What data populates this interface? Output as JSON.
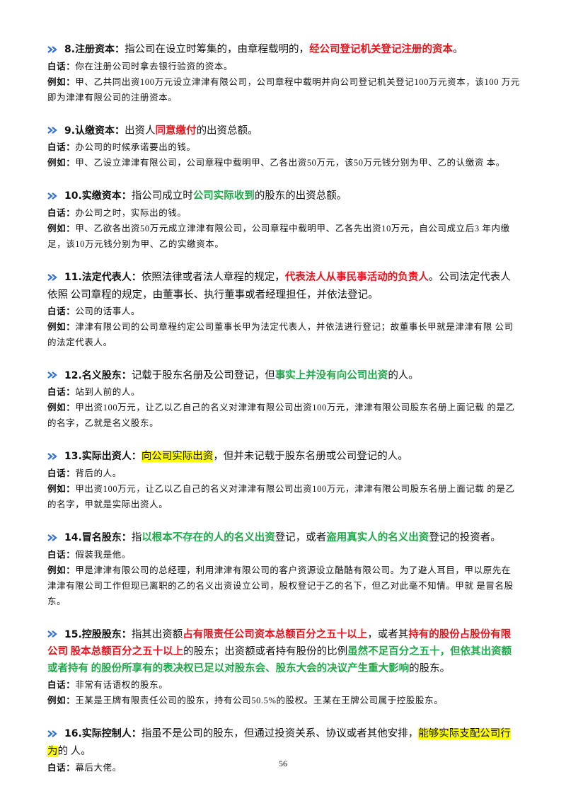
{
  "entries": [
    {
      "title": "8.注册资本：",
      "def": [
        {
          "text": "指公司在设立时筹集的，由章程载明的，"
        },
        {
          "text": "经公司登记机关登记注册的资本",
          "style": "red"
        },
        {
          "text": "。"
        }
      ],
      "lines": [
        {
          "label": "白话：",
          "text": "你在注册公司时拿去银行验资的资本。"
        },
        {
          "label": "例如：",
          "text": "甲、乙共同出资100万元设立津津有限公司，公司章程中载明并向公司登记机关登记100万元资本，该100 万元即为津津有限公司的注册资本。"
        }
      ]
    },
    {
      "title": "9.认缴资本：",
      "def": [
        {
          "text": "出资人"
        },
        {
          "text": "同意缴付",
          "style": "red"
        },
        {
          "text": "的出资总额。"
        }
      ],
      "lines": [
        {
          "label": "白话：",
          "text": "办公司的时候承诺要出的钱。"
        },
        {
          "label": "例如：",
          "text": "甲、乙设立津津有限公司，公司章程中载明甲、乙各出资50万元，该50万元钱分别为甲、乙的认缴资 本。"
        }
      ]
    },
    {
      "title": "10.实缴资本：",
      "def": [
        {
          "text": "指公司成立时"
        },
        {
          "text": "公司实际收到",
          "style": "green"
        },
        {
          "text": "的股东的出资总额。"
        }
      ],
      "lines": [
        {
          "label": "白话：",
          "text": "办公司之时，实际出的钱。"
        },
        {
          "label": "例如：",
          "text": "甲、乙欲各出资50万元成立津津有限公司，公司章程中载明甲、乙各先出资10万元，自公司成立后3 年内缴足，该10万元钱分别为甲、乙的实缴资本。"
        }
      ]
    },
    {
      "title": "11.法定代表人：",
      "def": [
        {
          "text": "依照法律或者法人章程的规定，"
        },
        {
          "text": "代表法人从事民事活动的负责人",
          "style": "red"
        },
        {
          "text": "。公司法定代表人依照 公司章程的规定，由董事长、执行董事或者经理担任，并依法登记。"
        }
      ],
      "lines": [
        {
          "label": "白话：",
          "text": "公司的话事人。"
        },
        {
          "label": "例如：",
          "text": "津津有限公司的公司章程约定公司董事长甲为法定代表人，并依法进行登记；故董事长甲就是津津有限 公司的法定代表人。"
        }
      ]
    },
    {
      "title": "12.名义股东：",
      "def": [
        {
          "text": "记载于股东名册及公司登记，但"
        },
        {
          "text": "事实上并没有向公司出资",
          "style": "green"
        },
        {
          "text": "的人。"
        }
      ],
      "lines": [
        {
          "label": "白话：",
          "text": "站到人前的人。"
        },
        {
          "label": "例如：",
          "text": "甲出资100万元，让乙以乙自己的名义对津津有限公司出资100万元，津津有限公司股东名册上面记载 的是乙的名字，乙就是名义股东。"
        }
      ]
    },
    {
      "title": "13.实际出资人：",
      "def": [
        {
          "text": "向公司实际出资",
          "style": "highlight"
        },
        {
          "text": "，但并未记载于股东名册或公司登记的人。"
        }
      ],
      "lines": [
        {
          "label": "白话：",
          "text": "背后的人。"
        },
        {
          "label": "例如：",
          "text": "甲出资100万元，让乙以乙自己的名义对津津有限公司出资100万元，津津有限公司股东名册上面记载 的是乙的名字，甲就是实际出资人。"
        }
      ]
    },
    {
      "title": "14.冒名股东：",
      "def": [
        {
          "text": "指"
        },
        {
          "text": "以根本不存在的人的名义出资",
          "style": "green"
        },
        {
          "text": "登记，或者"
        },
        {
          "text": "盗用真实人的名义出资",
          "style": "green"
        },
        {
          "text": "登记的投资者。"
        }
      ],
      "lines": [
        {
          "label": "白话：",
          "text": "假装我是他。"
        },
        {
          "label": "例如：",
          "text": "甲是津津有限公司的总经理，利用津津有限公司的客户资源设立酷酷有限公司。为了避人耳目，甲以原先在津津有限公司工作但现已离职的乙的名义出资设立公司，股权登记于乙的名下，但乙对此毫不知情。甲就 是冒名股东。"
        }
      ]
    },
    {
      "title": "15.控股股东：",
      "def": [
        {
          "text": "指其出资额"
        },
        {
          "text": "占有限责任公司资本总额百分之五十以上",
          "style": "red"
        },
        {
          "text": "，或者其"
        },
        {
          "text": "持有的股份占股份有限公司 股本总额百分之五十以上",
          "style": "red"
        },
        {
          "text": "的股东；出资额或者持有股份的比例"
        },
        {
          "text": "虽然不足百分之五十，但依其出资额或者持有 的股份所享有的表决权已足以对股东会、股东大会的决议产生重大影响",
          "style": "green"
        },
        {
          "text": "的股东。"
        }
      ],
      "lines": [
        {
          "label": "白话：",
          "text": "非常有话语权的股东。"
        },
        {
          "label": "例如：",
          "text": "王某是王牌有限责任公司的股东，持有公司50.5%的股权。王某在王牌公司属于控股股东。"
        }
      ]
    },
    {
      "title": "16.实际控制人：",
      "def": [
        {
          "text": "指虽不是公司的股东，但通过投资关系、协议或者其他安排，"
        },
        {
          "text": "能够实际支配公司行为",
          "style": "highlight"
        },
        {
          "text": "的 人。"
        }
      ],
      "lines": [
        {
          "label": "白话：",
          "text": "幕后大佬。"
        }
      ]
    }
  ],
  "page_number": "56"
}
